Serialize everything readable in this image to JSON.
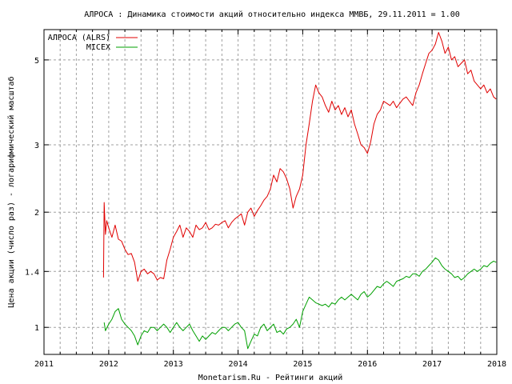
{
  "chart_data": {
    "type": "line",
    "title": "АЛРОСА : Динамика стоимости акций относительно индекса ММВБ, 29.11.2011 = 1.00",
    "xlabel": "Monetarism.Ru - Рейтинги акций",
    "ylabel": "Цена акции (число раз) - логарифмический масштаб",
    "y_scale": "log",
    "xlim": [
      2011,
      2018
    ],
    "ylim": [
      0.85,
      6.0
    ],
    "x_ticks": [
      "2011",
      "2012",
      "2013",
      "2014",
      "2015",
      "2016",
      "2017",
      "2018"
    ],
    "y_ticks": [
      {
        "value": 1.0,
        "label": "1"
      },
      {
        "value": 1.4,
        "label": "1.4"
      },
      {
        "value": 2.0,
        "label": "2"
      },
      {
        "value": 3.0,
        "label": "3"
      },
      {
        "value": 5.0,
        "label": "5"
      }
    ],
    "grid": true,
    "legend_position": "top-left",
    "series": [
      {
        "name": "АЛРОСА (ALRS)",
        "color": "#e00000",
        "x": [
          2011.92,
          2011.93,
          2011.95,
          2011.97,
          2012.0,
          2012.05,
          2012.1,
          2012.15,
          2012.2,
          2012.25,
          2012.3,
          2012.35,
          2012.4,
          2012.45,
          2012.5,
          2012.55,
          2012.6,
          2012.65,
          2012.7,
          2012.75,
          2012.8,
          2012.85,
          2012.9,
          2012.95,
          2013.0,
          2013.05,
          2013.1,
          2013.15,
          2013.2,
          2013.25,
          2013.3,
          2013.35,
          2013.4,
          2013.45,
          2013.5,
          2013.55,
          2013.6,
          2013.65,
          2013.7,
          2013.75,
          2013.8,
          2013.85,
          2013.9,
          2013.95,
          2014.0,
          2014.05,
          2014.1,
          2014.15,
          2014.2,
          2014.25,
          2014.3,
          2014.35,
          2014.4,
          2014.45,
          2014.5,
          2014.55,
          2014.6,
          2014.65,
          2014.7,
          2014.75,
          2014.8,
          2014.85,
          2014.9,
          2014.95,
          2015.0,
          2015.05,
          2015.1,
          2015.15,
          2015.2,
          2015.25,
          2015.3,
          2015.35,
          2015.4,
          2015.45,
          2015.5,
          2015.55,
          2015.6,
          2015.65,
          2015.7,
          2015.75,
          2015.8,
          2015.85,
          2015.9,
          2015.95,
          2016.0,
          2016.05,
          2016.1,
          2016.15,
          2016.2,
          2016.25,
          2016.3,
          2016.35,
          2016.4,
          2016.45,
          2016.5,
          2016.55,
          2016.6,
          2016.65,
          2016.7,
          2016.75,
          2016.8,
          2016.85,
          2016.9,
          2016.95,
          2017.0,
          2017.05,
          2017.1,
          2017.15,
          2017.2,
          2017.25,
          2017.3,
          2017.35,
          2017.4,
          2017.45,
          2017.5,
          2017.55,
          2017.6,
          2017.65,
          2017.7,
          2017.75,
          2017.8,
          2017.85,
          2017.9,
          2017.95,
          2017.99
        ],
        "values": [
          1.35,
          2.12,
          1.75,
          1.9,
          1.82,
          1.72,
          1.85,
          1.7,
          1.68,
          1.6,
          1.55,
          1.56,
          1.48,
          1.32,
          1.4,
          1.42,
          1.38,
          1.4,
          1.38,
          1.33,
          1.35,
          1.34,
          1.5,
          1.6,
          1.72,
          1.78,
          1.85,
          1.72,
          1.82,
          1.78,
          1.72,
          1.85,
          1.8,
          1.82,
          1.88,
          1.8,
          1.82,
          1.86,
          1.85,
          1.88,
          1.9,
          1.82,
          1.88,
          1.92,
          1.95,
          1.98,
          1.85,
          2.0,
          2.05,
          1.95,
          2.02,
          2.08,
          2.15,
          2.2,
          2.3,
          2.5,
          2.4,
          2.6,
          2.55,
          2.45,
          2.3,
          2.05,
          2.2,
          2.3,
          2.5,
          3.0,
          3.4,
          3.9,
          4.3,
          4.1,
          4.0,
          3.8,
          3.65,
          3.9,
          3.7,
          3.8,
          3.6,
          3.75,
          3.55,
          3.7,
          3.4,
          3.2,
          3.0,
          2.95,
          2.85,
          3.05,
          3.4,
          3.6,
          3.7,
          3.9,
          3.85,
          3.8,
          3.9,
          3.75,
          3.85,
          3.95,
          4.0,
          3.9,
          3.8,
          4.1,
          4.3,
          4.6,
          4.9,
          5.2,
          5.3,
          5.5,
          5.9,
          5.6,
          5.2,
          5.4,
          5.0,
          5.1,
          4.8,
          4.9,
          5.0,
          4.6,
          4.7,
          4.4,
          4.3,
          4.2,
          4.3,
          4.1,
          4.2,
          4.0,
          3.95
        ]
      },
      {
        "name": "MICEX",
        "color": "#00a000",
        "x": [
          2011.93,
          2011.95,
          2012.0,
          2012.05,
          2012.1,
          2012.15,
          2012.2,
          2012.25,
          2012.3,
          2012.35,
          2012.4,
          2012.45,
          2012.5,
          2012.55,
          2012.6,
          2012.65,
          2012.7,
          2012.75,
          2012.8,
          2012.85,
          2012.9,
          2012.95,
          2013.0,
          2013.05,
          2013.1,
          2013.15,
          2013.2,
          2013.25,
          2013.3,
          2013.35,
          2013.4,
          2013.45,
          2013.5,
          2013.55,
          2013.6,
          2013.65,
          2013.7,
          2013.75,
          2013.8,
          2013.85,
          2013.9,
          2013.95,
          2014.0,
          2014.05,
          2014.1,
          2014.15,
          2014.2,
          2014.25,
          2014.3,
          2014.35,
          2014.4,
          2014.45,
          2014.5,
          2014.55,
          2014.6,
          2014.65,
          2014.7,
          2014.75,
          2014.8,
          2014.85,
          2014.9,
          2014.95,
          2015.0,
          2015.05,
          2015.1,
          2015.15,
          2015.2,
          2015.25,
          2015.3,
          2015.35,
          2015.4,
          2015.45,
          2015.5,
          2015.55,
          2015.6,
          2015.65,
          2015.7,
          2015.75,
          2015.8,
          2015.85,
          2015.9,
          2015.95,
          2016.0,
          2016.05,
          2016.1,
          2016.15,
          2016.2,
          2016.25,
          2016.3,
          2016.35,
          2016.4,
          2016.45,
          2016.5,
          2016.55,
          2016.6,
          2016.65,
          2016.7,
          2016.75,
          2016.8,
          2016.85,
          2016.9,
          2016.95,
          2017.0,
          2017.05,
          2017.1,
          2017.15,
          2017.2,
          2017.25,
          2017.3,
          2017.35,
          2017.4,
          2017.45,
          2017.5,
          2017.55,
          2017.6,
          2017.65,
          2017.7,
          2017.75,
          2017.8,
          2017.85,
          2017.9,
          2017.95,
          2017.99
        ],
        "values": [
          1.03,
          0.98,
          1.02,
          1.05,
          1.1,
          1.12,
          1.05,
          1.02,
          1.0,
          0.98,
          0.95,
          0.9,
          0.95,
          0.98,
          0.97,
          1.0,
          1.0,
          0.98,
          1.0,
          1.02,
          1.0,
          0.97,
          1.0,
          1.03,
          1.0,
          0.98,
          1.0,
          1.02,
          0.98,
          0.95,
          0.92,
          0.95,
          0.93,
          0.95,
          0.97,
          0.96,
          0.98,
          1.0,
          1.0,
          0.98,
          1.0,
          1.02,
          1.03,
          1.0,
          0.98,
          0.88,
          0.92,
          0.96,
          0.95,
          1.0,
          1.02,
          0.98,
          1.0,
          1.02,
          0.97,
          0.98,
          0.96,
          0.99,
          1.0,
          1.02,
          1.05,
          1.0,
          1.1,
          1.15,
          1.2,
          1.18,
          1.16,
          1.15,
          1.14,
          1.15,
          1.13,
          1.16,
          1.15,
          1.18,
          1.2,
          1.18,
          1.2,
          1.22,
          1.2,
          1.18,
          1.22,
          1.24,
          1.2,
          1.22,
          1.25,
          1.28,
          1.27,
          1.3,
          1.32,
          1.3,
          1.28,
          1.32,
          1.33,
          1.34,
          1.36,
          1.35,
          1.38,
          1.38,
          1.36,
          1.4,
          1.42,
          1.45,
          1.48,
          1.52,
          1.5,
          1.45,
          1.42,
          1.4,
          1.38,
          1.35,
          1.36,
          1.33,
          1.35,
          1.38,
          1.4,
          1.42,
          1.4,
          1.42,
          1.45,
          1.44,
          1.47,
          1.49,
          1.48
        ]
      }
    ]
  }
}
